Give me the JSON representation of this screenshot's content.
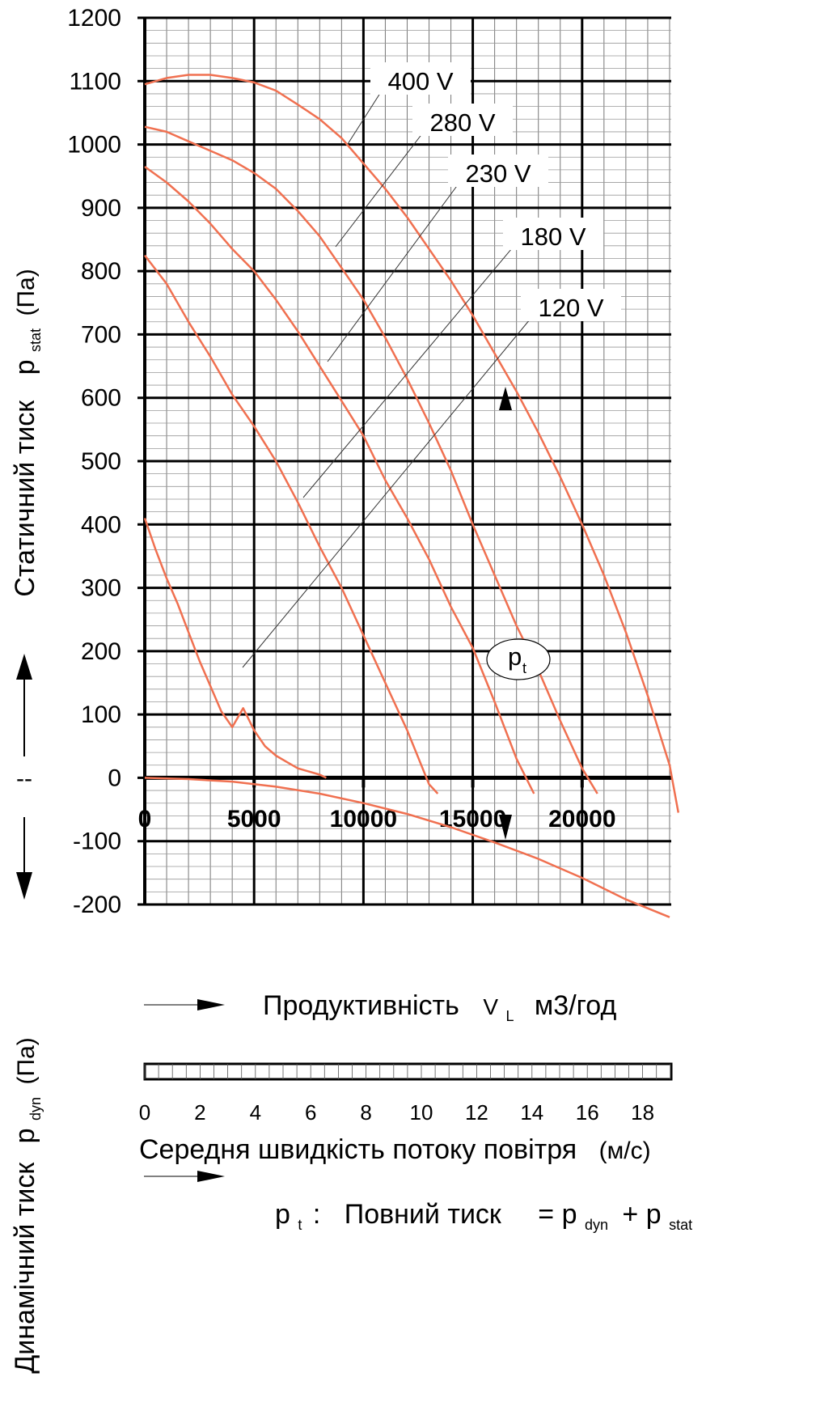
{
  "chart_data": {
    "type": "line",
    "xlabel_prefix": "Продуктивність",
    "xlabel_symbol": "V",
    "xlabel_symbol_sub": "L",
    "xlabel_unit": "м3/год",
    "ylabel_top": "Статичний тиск",
    "ylabel_top_symbol": "p",
    "ylabel_top_sub": "stat",
    "ylabel_top_unit": "(Па)",
    "ylabel_bottom": "Динамічний тиск",
    "ylabel_bottom_symbol": "p",
    "ylabel_bottom_sub": "dyn",
    "ylabel_bottom_unit": "(Па)",
    "xlim": [
      0,
      24000
    ],
    "ylim": [
      -200,
      1200
    ],
    "x_ticks": [
      0,
      5000,
      10000,
      15000,
      20000
    ],
    "x_tick_labels": [
      "0",
      "5000",
      "10000",
      "15000",
      "20000"
    ],
    "y_ticks": [
      1200,
      1100,
      1000,
      900,
      800,
      700,
      600,
      500,
      400,
      300,
      200,
      100,
      0,
      -100,
      -200
    ],
    "y_tick_labels": [
      "1200",
      "1100",
      "1000",
      "900",
      "800",
      "700",
      "600",
      "500",
      "400",
      "300",
      "200",
      "100",
      "0",
      "-100",
      "-200"
    ],
    "grid": true,
    "series": [
      {
        "name": "400 V",
        "color": "#f07050",
        "x": [
          0,
          1000,
          2000,
          3000,
          4000,
          5000,
          6000,
          7000,
          8000,
          9000,
          10000,
          11000,
          12000,
          13000,
          14000,
          15000,
          16000,
          17000,
          18000,
          19000,
          20000,
          21000,
          22000,
          23000,
          24000,
          24400
        ],
        "y": [
          1095,
          1105,
          1110,
          1110,
          1105,
          1098,
          1085,
          1063,
          1040,
          1010,
          970,
          930,
          885,
          835,
          785,
          730,
          670,
          610,
          545,
          475,
          400,
          320,
          230,
          130,
          20,
          -55
        ]
      },
      {
        "name": "280 V",
        "color": "#f07050",
        "x": [
          0,
          1000,
          2000,
          3000,
          4000,
          5000,
          6000,
          7000,
          8000,
          9000,
          10000,
          11000,
          12000,
          13000,
          14000,
          15000,
          16000,
          17000,
          18000,
          19000,
          20000,
          20700
        ],
        "y": [
          1028,
          1020,
          1005,
          990,
          975,
          955,
          930,
          895,
          855,
          805,
          755,
          695,
          630,
          560,
          485,
          400,
          320,
          240,
          170,
          90,
          15,
          -25
        ]
      },
      {
        "name": "230 V",
        "color": "#f07050",
        "x": [
          0,
          1000,
          2000,
          3000,
          4000,
          5000,
          6000,
          7000,
          8000,
          9000,
          10000,
          11000,
          12000,
          13000,
          14000,
          15000,
          16000,
          17000,
          17800
        ],
        "y": [
          965,
          940,
          910,
          875,
          835,
          800,
          755,
          705,
          650,
          595,
          540,
          470,
          410,
          345,
          270,
          205,
          120,
          30,
          -25
        ]
      },
      {
        "name": "180 V",
        "color": "#f07050",
        "x": [
          0,
          1000,
          2000,
          3000,
          4000,
          5000,
          6000,
          7000,
          8000,
          9000,
          10000,
          11000,
          12000,
          13000,
          13400
        ],
        "y": [
          825,
          780,
          720,
          665,
          605,
          555,
          500,
          435,
          365,
          300,
          225,
          150,
          75,
          -10,
          -25
        ]
      },
      {
        "name": "120 V",
        "color": "#f07050",
        "x": [
          0,
          500,
          1000,
          1500,
          2000,
          2500,
          3000,
          3500,
          4000,
          4500,
          5000,
          5500,
          6000,
          6500,
          7000,
          7500,
          8000,
          8300
        ],
        "y": [
          410,
          360,
          315,
          275,
          230,
          185,
          145,
          105,
          80,
          110,
          75,
          50,
          35,
          25,
          15,
          10,
          5,
          0
        ]
      },
      {
        "name": "p_dyn",
        "color": "#f07050",
        "x": [
          0,
          2000,
          4000,
          6000,
          8000,
          10000,
          12000,
          14000,
          16000,
          18000,
          20000,
          22000,
          24000
        ],
        "y": [
          0,
          -2,
          -6,
          -14,
          -25,
          -40,
          -57,
          -78,
          -102,
          -128,
          -158,
          -192,
          -220
        ]
      }
    ],
    "curve_labels": [
      "400 V",
      "280 V",
      "230 V",
      "180 V",
      "120 V"
    ],
    "pt_label": "p",
    "pt_label_sub": "t",
    "velocity_axis": {
      "label": "Середня швидкість потоку повітря",
      "unit": "(м/с)",
      "ticks": [
        0,
        2,
        4,
        6,
        8,
        10,
        12,
        14,
        16,
        18
      ],
      "tick_labels": [
        "0",
        "2",
        "4",
        "6",
        "8",
        "10",
        "12",
        "14",
        "16",
        "18"
      ],
      "max": 19
    },
    "formula": {
      "lhs_symbol": "p",
      "lhs_sub": "t",
      "colon": ":",
      "text": "Повний тиск",
      "eq": "= p",
      "sub1": "dyn",
      "plus": "+ p",
      "sub2": "stat"
    },
    "separator": "--"
  }
}
